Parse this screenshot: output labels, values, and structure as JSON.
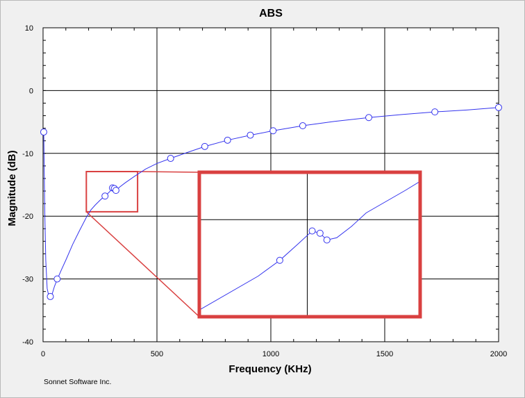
{
  "chart_data": {
    "type": "line",
    "title": "ABS",
    "xlabel": "Frequency (KHz)",
    "ylabel": "Magnitude (dB)",
    "xlim": [
      0,
      2000
    ],
    "ylim": [
      -40,
      10
    ],
    "xticks": [
      0,
      500,
      1000,
      1500,
      2000
    ],
    "yticks": [
      10,
      0,
      -10,
      -20,
      -30,
      -40
    ],
    "x_tick_labels": [
      "0",
      "500",
      "1000",
      "1500",
      "2000"
    ],
    "y_tick_labels": [
      "10",
      "0",
      "-10",
      "-20",
      "-30",
      "-40"
    ],
    "grid": true,
    "colors": {
      "series": "#3333ee",
      "grid": "#000000",
      "zoom": "#d94040",
      "background": "#ffffff"
    },
    "series": [
      {
        "markers": "circle-open",
        "line": [
          [
            3,
            -6.6
          ],
          [
            5,
            -12
          ],
          [
            8,
            -20
          ],
          [
            12,
            -27
          ],
          [
            18,
            -31.5
          ],
          [
            25,
            -32.7
          ],
          [
            32,
            -32.8
          ],
          [
            40,
            -32.4
          ],
          [
            50,
            -31.2
          ],
          [
            62,
            -30.1
          ],
          [
            80,
            -28.6
          ],
          [
            100,
            -27.0
          ],
          [
            130,
            -24.5
          ],
          [
            160,
            -22.3
          ],
          [
            190,
            -20.2
          ],
          [
            210,
            -19.0
          ],
          [
            230,
            -18.2
          ],
          [
            255,
            -17.3
          ],
          [
            272,
            -16.8
          ],
          [
            290,
            -16.2
          ],
          [
            305,
            -15.6
          ],
          [
            313,
            -15.5
          ],
          [
            320,
            -15.9
          ],
          [
            335,
            -15.4
          ],
          [
            360,
            -14.7
          ],
          [
            400,
            -13.7
          ],
          [
            450,
            -12.5
          ],
          [
            500,
            -11.6
          ],
          [
            560,
            -10.8
          ],
          [
            630,
            -9.9
          ],
          [
            710,
            -8.9
          ],
          [
            810,
            -7.9
          ],
          [
            910,
            -7.1
          ],
          [
            1010,
            -6.4
          ],
          [
            1140,
            -5.6
          ],
          [
            1280,
            -4.9
          ],
          [
            1430,
            -4.3
          ],
          [
            1580,
            -3.8
          ],
          [
            1720,
            -3.4
          ],
          [
            1860,
            -3.1
          ],
          [
            2000,
            -2.7
          ]
        ],
        "points": [
          [
            3,
            -6.6
          ],
          [
            32,
            -32.8
          ],
          [
            62,
            -30.0
          ],
          [
            272,
            -16.8
          ],
          [
            305,
            -15.5
          ],
          [
            313,
            -15.6
          ],
          [
            320,
            -15.9
          ],
          [
            560,
            -10.8
          ],
          [
            710,
            -8.9
          ],
          [
            810,
            -7.9
          ],
          [
            910,
            -7.1
          ],
          [
            1010,
            -6.4
          ],
          [
            1140,
            -5.6
          ],
          [
            1430,
            -4.3
          ],
          [
            1720,
            -3.4
          ],
          [
            2000,
            -2.7
          ]
        ]
      }
    ],
    "zoom_region": {
      "xlim": [
        190,
        415
      ],
      "ylim": [
        -19.3,
        -12.9
      ]
    },
    "zoom_inset_points": [
      [
        250,
        -17.5
      ],
      [
        272,
        -16.8
      ],
      [
        290,
        -16.1
      ],
      [
        305,
        -15.5
      ],
      [
        313,
        -15.6
      ],
      [
        320,
        -15.9
      ],
      [
        330,
        -15.8
      ],
      [
        345,
        -15.3
      ]
    ]
  },
  "credit": "Sonnet Software Inc."
}
